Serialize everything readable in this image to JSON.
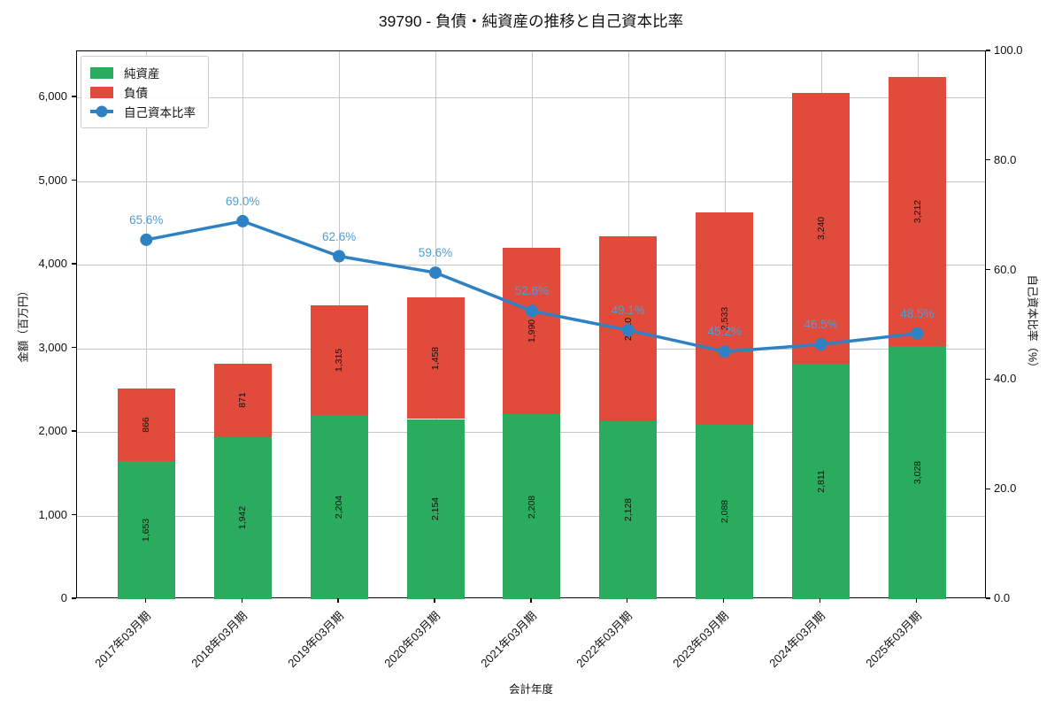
{
  "chart_data": {
    "type": "bar",
    "subtype": "stacked-bar-with-line",
    "title": "39790 - 負債・純資産の推移と自己資本比率",
    "xlabel": "会計年度",
    "ylabel_left": "金額（百万円）",
    "ylabel_right": "自己資本比率（%）",
    "categories": [
      "2017年03月期",
      "2018年03月期",
      "2019年03月期",
      "2020年03月期",
      "2021年03月期",
      "2022年03月期",
      "2023年03月期",
      "2024年03月期",
      "2025年03月期"
    ],
    "series": [
      {
        "name": "純資産",
        "type": "bar",
        "stack": "total",
        "color": "#2bab5e",
        "values": [
          1653,
          1942,
          2204,
          2154,
          2208,
          2128,
          2088,
          2811,
          3028
        ],
        "labels": [
          "1,653",
          "1,942",
          "2,204",
          "2,154",
          "2,208",
          "2,128",
          "2,088",
          "2,811",
          "3,028"
        ]
      },
      {
        "name": "負債",
        "type": "bar",
        "stack": "total",
        "color": "#e04b3c",
        "values": [
          866,
          871,
          1315,
          1458,
          1990,
          2210,
          2533,
          3240,
          3212
        ],
        "labels": [
          "866",
          "871",
          "1,315",
          "1,458",
          "1,990",
          "2,210",
          "2,533",
          "3,240",
          "3,212"
        ]
      },
      {
        "name": "自己資本比率",
        "type": "line",
        "axis": "right",
        "color": "#2e82c4",
        "label_color": "#4d9ed6",
        "values": [
          65.6,
          69.0,
          62.6,
          59.6,
          52.6,
          49.1,
          45.2,
          46.5,
          48.5
        ],
        "labels": [
          "65.6%",
          "69.0%",
          "62.6%",
          "59.6%",
          "52.6%",
          "49.1%",
          "45.2%",
          "46.5%",
          "48.5%"
        ]
      }
    ],
    "left_axis": {
      "ticks": [
        0,
        1000,
        2000,
        3000,
        4000,
        5000,
        6000
      ],
      "tick_labels": [
        "0",
        "1,000",
        "2,000",
        "3,000",
        "4,000",
        "5,000",
        "6,000"
      ],
      "range": [
        0,
        6552
      ]
    },
    "right_axis": {
      "ticks": [
        0,
        20,
        40,
        60,
        80,
        100
      ],
      "tick_labels": [
        "0.0",
        "20.0",
        "40.0",
        "60.0",
        "80.0",
        "100.0"
      ],
      "range": [
        0,
        100
      ]
    },
    "grid": true,
    "legend_position": "upper left"
  }
}
